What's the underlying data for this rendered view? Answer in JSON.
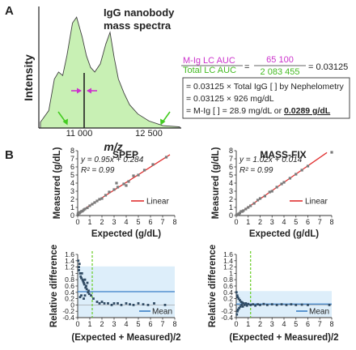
{
  "panel_a": {
    "label": "A",
    "title_line1": "IgG nanobody",
    "title_line2": "mass spectra",
    "ylabel": "Intensity",
    "xlabel": "m/z",
    "tick_left": "11 000",
    "tick_right": "12 500",
    "ratio": {
      "num_label": "M-Ig LC AUC",
      "den_label": "Total LC AUC",
      "equals": "=",
      "num_value": "65 100",
      "den_value": "2 083 455",
      "result": "= 0.03125"
    },
    "calc": {
      "line1": "= 0.03125 × Total IgG [ ] by Nephelometry",
      "line2": "= 0.03125 × 926 mg/dL",
      "line3_prefix": "= M-Ig [ ] = 28.9 mg/dL or ",
      "line3_value": "0.0289 g/dL"
    },
    "colors": {
      "fill": "#c8f0b4",
      "outline": "#404040",
      "magenta": "#cc33cc",
      "green": "#44cc22"
    }
  },
  "panel_b_label": "B",
  "chart_data": [
    {
      "type": "scatter",
      "title": "SPEP",
      "xlabel": "Expected (g/dL)",
      "ylabel": "Measured (g/dL)",
      "xlim": [
        0,
        8
      ],
      "ylim": [
        0,
        8
      ],
      "xticks": [
        "0",
        "1",
        "2",
        "3",
        "4",
        "5",
        "6",
        "7",
        "8"
      ],
      "yticks": [
        "0",
        "1",
        "2",
        "3",
        "4",
        "5",
        "6",
        "7",
        "8"
      ],
      "equation": "y = 0.95x + 0.284",
      "r2": "R² = 0.99",
      "legend": "Linear",
      "fit": {
        "slope": 0.95,
        "intercept": 0.284
      },
      "points": [
        [
          0.02,
          0.2
        ],
        [
          0.05,
          0.25
        ],
        [
          0.1,
          0.35
        ],
        [
          0.15,
          0.3
        ],
        [
          0.2,
          0.4
        ],
        [
          0.3,
          0.5
        ],
        [
          0.4,
          0.55
        ],
        [
          0.5,
          0.7
        ],
        [
          0.6,
          0.8
        ],
        [
          0.8,
          0.95
        ],
        [
          1.0,
          1.2
        ],
        [
          1.2,
          1.4
        ],
        [
          1.4,
          1.6
        ],
        [
          1.6,
          1.8
        ],
        [
          1.8,
          2.0
        ],
        [
          2.0,
          2.1
        ],
        [
          2.3,
          2.5
        ],
        [
          2.6,
          2.9
        ],
        [
          3.0,
          3.2
        ],
        [
          3.3,
          3.5
        ],
        [
          3.8,
          3.9
        ],
        [
          4.2,
          4.2
        ],
        [
          4.6,
          4.9
        ],
        [
          5.0,
          5.0
        ],
        [
          5.5,
          5.6
        ],
        [
          6.2,
          6.3
        ],
        [
          7.3,
          7.2
        ],
        [
          3.2,
          4.0
        ],
        [
          4.0,
          3.7
        ]
      ],
      "color": "#e03030"
    },
    {
      "type": "scatter",
      "title": "MASS-FIX",
      "xlabel": "Expected (g/dL)",
      "ylabel": "Measured (g/dL)",
      "xlim": [
        0,
        8
      ],
      "ylim": [
        0,
        8
      ],
      "xticks": [
        "0",
        "1",
        "2",
        "3",
        "4",
        "5",
        "6",
        "7",
        "8"
      ],
      "yticks": [
        "0",
        "1",
        "2",
        "3",
        "4",
        "5",
        "6",
        "7",
        "8"
      ],
      "equation": "y = 1.02x + 0.014",
      "r2": "R² = 0.99",
      "legend": "Linear",
      "fit": {
        "slope": 1.02,
        "intercept": 0.014
      },
      "points": [
        [
          0.02,
          0.05
        ],
        [
          0.05,
          0.1
        ],
        [
          0.1,
          0.1
        ],
        [
          0.2,
          0.2
        ],
        [
          0.3,
          0.3
        ],
        [
          0.4,
          0.5
        ],
        [
          0.5,
          0.5
        ],
        [
          0.6,
          0.6
        ],
        [
          0.8,
          0.8
        ],
        [
          1.0,
          1.0
        ],
        [
          1.2,
          1.2
        ],
        [
          1.5,
          1.5
        ],
        [
          1.8,
          1.9
        ],
        [
          2.0,
          2.1
        ],
        [
          2.4,
          2.4
        ],
        [
          2.8,
          2.9
        ],
        [
          3.0,
          3.0
        ],
        [
          3.4,
          3.5
        ],
        [
          3.8,
          3.9
        ],
        [
          4.0,
          4.1
        ],
        [
          4.5,
          4.6
        ],
        [
          5.0,
          5.1
        ],
        [
          5.5,
          5.6
        ],
        [
          6.0,
          6.1
        ],
        [
          8.0,
          7.8
        ]
      ],
      "color": "#e03030"
    },
    {
      "type": "scatter",
      "title": "",
      "xlabel": "(Expected + Measured)/2",
      "ylabel": "Relative difference",
      "xlim": [
        0,
        8
      ],
      "ylim": [
        -0.4,
        1.6
      ],
      "xticks": [
        "0",
        "1",
        "2",
        "3",
        "4",
        "5",
        "6",
        "7",
        "8"
      ],
      "yticks": [
        "-0.4",
        "-0.2",
        "0",
        "0.2",
        "0.4",
        "0.6",
        "0.8",
        "1",
        "1.2",
        "1.4",
        "1.6"
      ],
      "legend": "Mean",
      "mean": 0.42,
      "band": [
        -0.38,
        1.22
      ],
      "vline": 1.2,
      "points": [
        [
          0.05,
          1.4
        ],
        [
          0.1,
          1.2
        ],
        [
          0.15,
          1.3
        ],
        [
          0.1,
          1.1
        ],
        [
          0.2,
          1.0
        ],
        [
          0.25,
          0.9
        ],
        [
          0.3,
          0.85
        ],
        [
          0.35,
          1.0
        ],
        [
          0.4,
          0.8
        ],
        [
          0.45,
          0.75
        ],
        [
          0.5,
          0.7
        ],
        [
          0.55,
          0.65
        ],
        [
          0.6,
          0.8
        ],
        [
          0.65,
          0.55
        ],
        [
          0.7,
          0.6
        ],
        [
          0.75,
          0.5
        ],
        [
          0.8,
          0.7
        ],
        [
          0.85,
          0.4
        ],
        [
          0.9,
          0.45
        ],
        [
          0.95,
          0.35
        ],
        [
          0.3,
          0.3
        ],
        [
          0.2,
          0.25
        ],
        [
          0.6,
          0.3
        ],
        [
          0.5,
          0.2
        ],
        [
          1.1,
          0.3
        ],
        [
          1.3,
          0.2
        ],
        [
          1.6,
          0.1
        ],
        [
          1.8,
          0.05
        ],
        [
          2.0,
          0.1
        ],
        [
          2.2,
          0.05
        ],
        [
          2.5,
          0.05
        ],
        [
          2.8,
          0.0
        ],
        [
          3.0,
          0.05
        ],
        [
          3.3,
          0.05
        ],
        [
          3.6,
          0.0
        ],
        [
          4.0,
          0.05
        ],
        [
          4.3,
          0.02
        ],
        [
          4.6,
          0.0
        ],
        [
          5.0,
          0.05
        ],
        [
          5.4,
          0.02
        ],
        [
          5.8,
          0.0
        ],
        [
          6.3,
          0.05
        ],
        [
          7.2,
          0.0
        ]
      ],
      "color": "#3a7fc6"
    },
    {
      "type": "scatter",
      "title": "",
      "xlabel": "(Expected + Measured)/2",
      "ylabel": "Relative difference",
      "xlim": [
        0,
        8
      ],
      "ylim": [
        -0.4,
        1.6
      ],
      "xticks": [
        "0",
        "1",
        "2",
        "3",
        "4",
        "5",
        "6",
        "7",
        "8"
      ],
      "yticks": [
        "-0.4",
        "-0.2",
        "0",
        "0.2",
        "0.4",
        "0.6",
        "0.8",
        "1",
        "1.2",
        "1.4",
        "1.6"
      ],
      "legend": "Mean",
      "mean": 0.03,
      "band": [
        -0.38,
        0.44
      ],
      "vline": 1.2,
      "points": [
        [
          0.02,
          0.4
        ],
        [
          0.05,
          -0.3
        ],
        [
          0.08,
          0.3
        ],
        [
          0.1,
          -0.2
        ],
        [
          0.12,
          0.25
        ],
        [
          0.15,
          -0.15
        ],
        [
          0.2,
          0.2
        ],
        [
          0.25,
          -0.1
        ],
        [
          0.3,
          0.15
        ],
        [
          0.35,
          -0.05
        ],
        [
          0.4,
          0.1
        ],
        [
          0.45,
          0.0
        ],
        [
          0.5,
          0.08
        ],
        [
          0.55,
          -0.05
        ],
        [
          0.6,
          0.05
        ],
        [
          0.7,
          0.0
        ],
        [
          0.8,
          0.05
        ],
        [
          0.9,
          -0.02
        ],
        [
          1.0,
          0.03
        ],
        [
          1.2,
          0.0
        ],
        [
          1.4,
          0.02
        ],
        [
          1.6,
          -0.02
        ],
        [
          1.8,
          0.02
        ],
        [
          2.0,
          0.0
        ],
        [
          2.3,
          0.03
        ],
        [
          2.6,
          0.0
        ],
        [
          3.0,
          0.02
        ],
        [
          3.4,
          0.0
        ],
        [
          3.8,
          0.02
        ],
        [
          4.2,
          0.0
        ],
        [
          4.6,
          0.02
        ],
        [
          5.0,
          0.0
        ],
        [
          5.5,
          0.01
        ],
        [
          6.0,
          0.0
        ],
        [
          7.8,
          0.0
        ]
      ],
      "color": "#3a7fc6"
    }
  ]
}
